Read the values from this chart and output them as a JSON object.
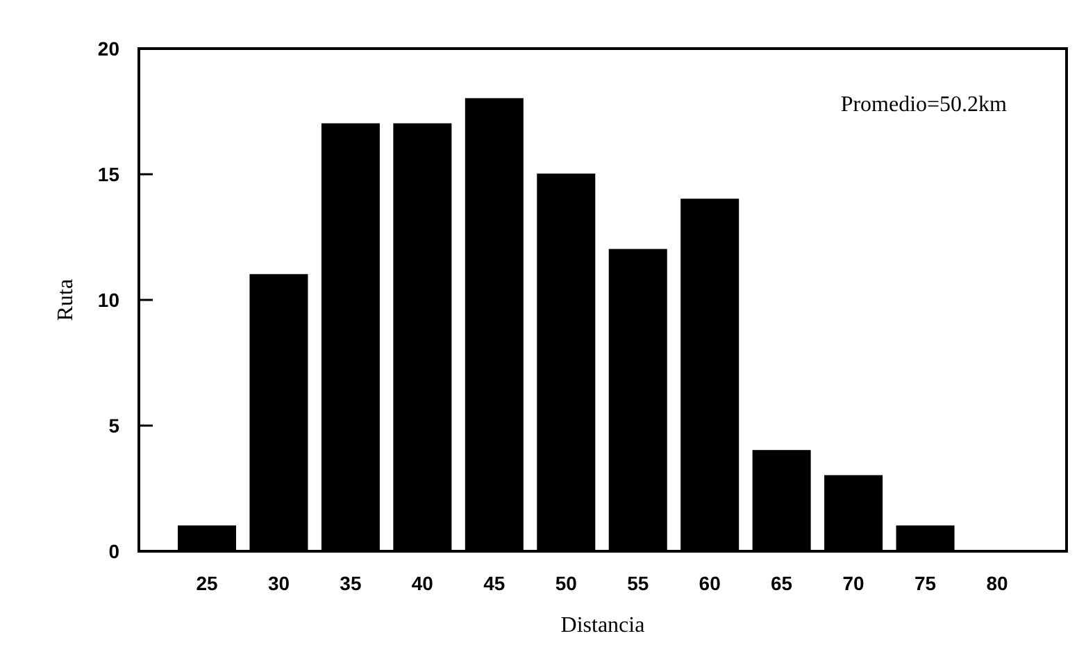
{
  "chart_data": {
    "type": "bar",
    "xlabel": "Distancia",
    "ylabel": "Ruta",
    "categories": [
      "25",
      "30",
      "35",
      "40",
      "45",
      "50",
      "55",
      "60",
      "65",
      "70",
      "75",
      "80"
    ],
    "values": [
      1,
      11,
      17,
      17,
      18,
      15,
      12,
      14,
      4,
      3,
      1,
      0
    ],
    "color": "#000000",
    "ylim": [
      0,
      20
    ],
    "yticks": [
      0,
      5,
      10,
      15,
      20
    ],
    "annotations": [
      "Promedio=50.2km"
    ],
    "grid": false
  }
}
